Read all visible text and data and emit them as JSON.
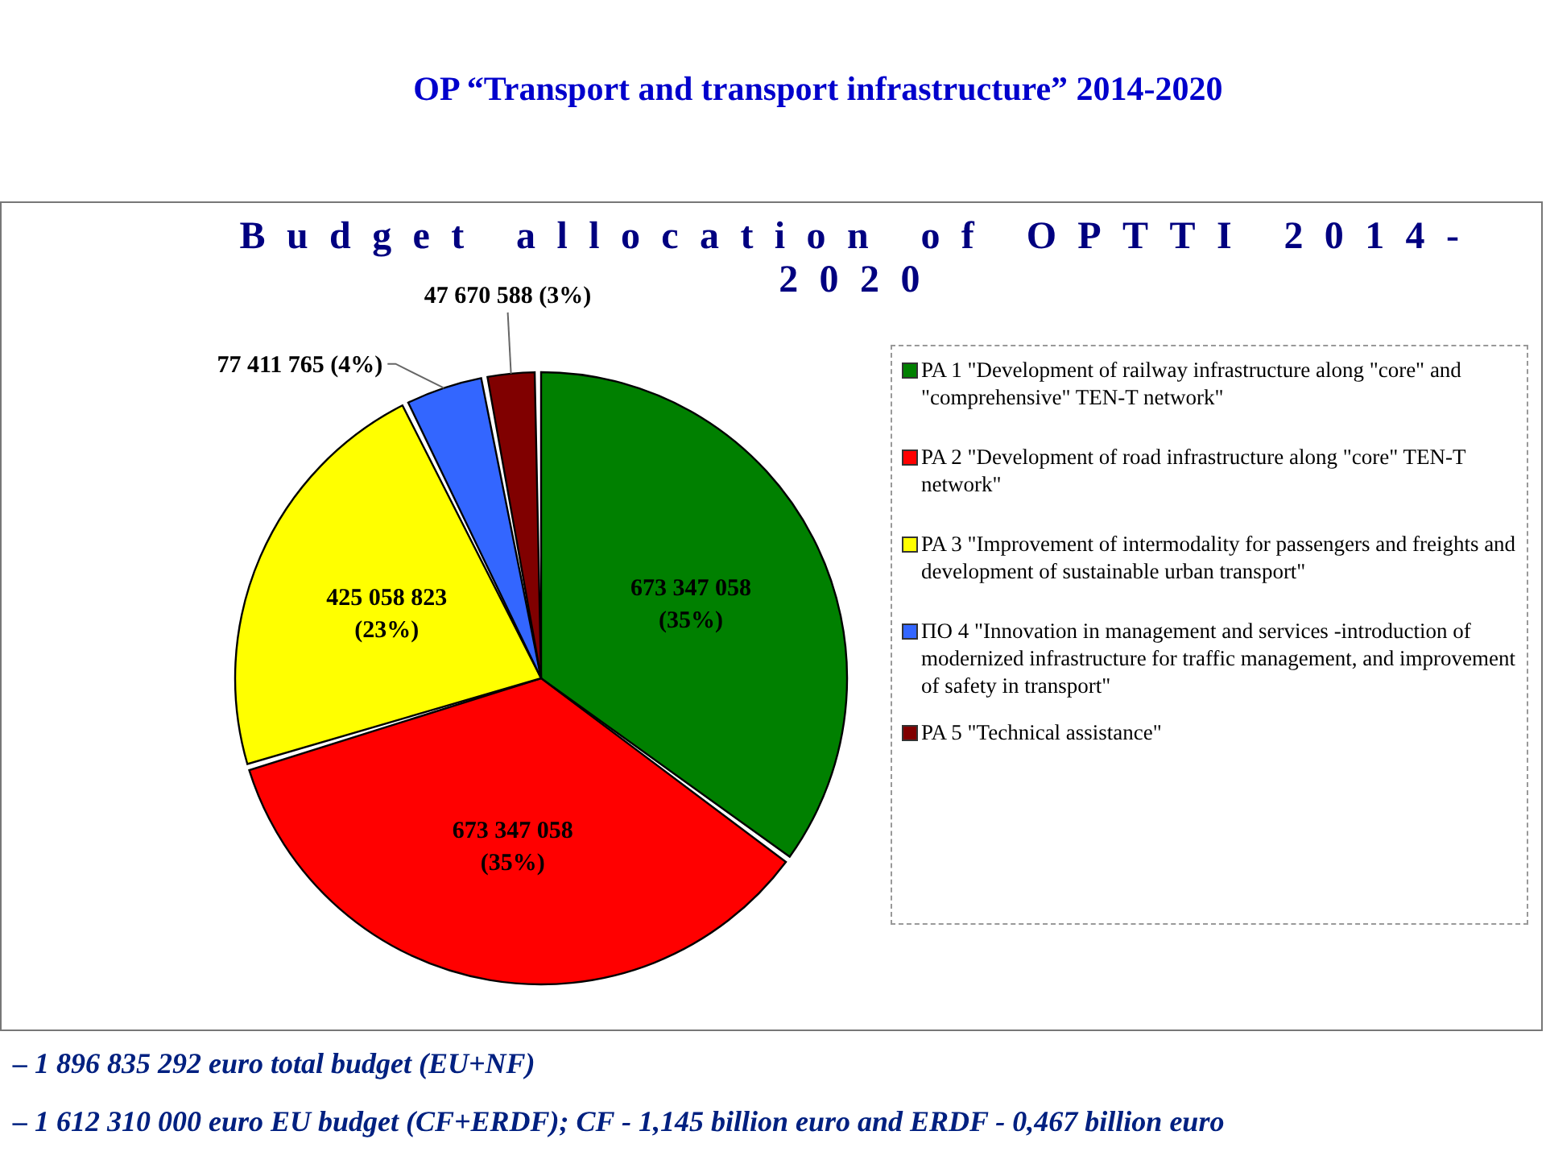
{
  "chart_data": {
    "type": "pie",
    "title": "OP “Transport and transport infrastructure” 2014-2020",
    "subtitle": "Budget allocation of OPTTI 2014-2020",
    "categories": [
      "PA 1 \"Development of railway infrastructure along \"core\" and \"comprehensive\" TEN-T network\"",
      "PA 2 \"Development of road infrastructure along \"core\" TEN-T network\"",
      "PA 3 \"Improvement of intermodality for passengers and freights and development of sustainable urban transport\"",
      "ПО 4 \"Innovation in management and services -introduction of modernized  infrastructure for traffic management, and improvement of safety in transport\"",
      "PA 5 \"Technical assistance\""
    ],
    "values": [
      673347058,
      673347058,
      425058823,
      77411765,
      47670588
    ],
    "colors": [
      "#008000",
      "#ff0000",
      "#ffff00",
      "#3366ff",
      "#800000"
    ],
    "value_labels": [
      "673 347 058 (35%)",
      "673 347 058 (35%)",
      "425 058 823 (23%)",
      "77 411 765 (4%)",
      "47 670 588 (3%)"
    ],
    "legend": "right",
    "annotations": [
      "– 1 896 835 292 euro total budget (EU+NF)",
      "– 1 612 310 000 euro EU budget (CF+ERDF);  CF - 1,145 billion euro and ERDF - 0,467 billion euro"
    ]
  }
}
